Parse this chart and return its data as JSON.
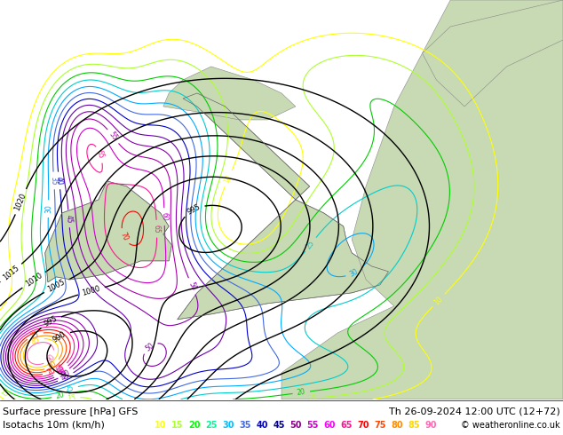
{
  "title_left": "Surface pressure [hPa] GFS",
  "title_right": "Th 26-09-2024 12:00 UTC (12+72)",
  "legend_label": "Isotachs 10m (km/h)",
  "copyright": "© weatheronline.co.uk",
  "isotach_values": [
    10,
    15,
    20,
    25,
    30,
    35,
    40,
    45,
    50,
    55,
    60,
    65,
    70,
    75,
    80,
    85,
    90
  ],
  "legend_colors": [
    "#ffff00",
    "#adff2f",
    "#00ff00",
    "#00fa9a",
    "#00bfff",
    "#4169e1",
    "#0000cd",
    "#00008b",
    "#8b008b",
    "#cc00cc",
    "#ff00ff",
    "#ff1493",
    "#ff0000",
    "#ff4500",
    "#ff8c00",
    "#ffd700",
    "#ff69b4"
  ],
  "sea_color": "#d8dfe8",
  "fig_width": 6.34,
  "fig_height": 4.9,
  "dpi": 100,
  "title_fontsize": 8,
  "legend_fontsize": 8
}
